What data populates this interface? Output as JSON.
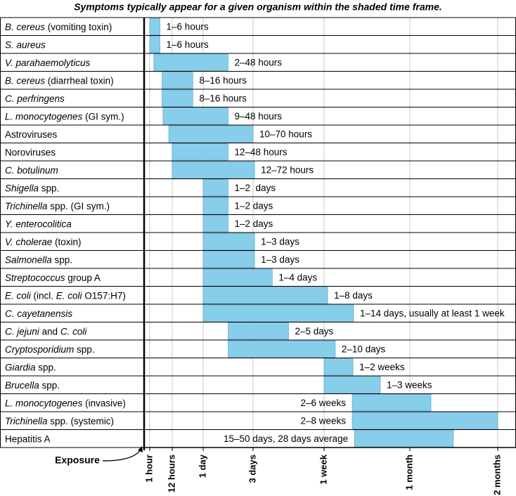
{
  "chart_data": {
    "type": "gantt",
    "title": "Symptoms typically appear for a given organism within the shaded time frame.",
    "annotation": "Exposure",
    "color": "#87ceeb",
    "grid": true,
    "xlim": [
      0,
      1590
    ],
    "xticks": [
      {
        "value": 1,
        "label": "1 hour"
      },
      {
        "value": 12,
        "label": "12 hours"
      },
      {
        "value": 24,
        "label": "1 day"
      },
      {
        "value": 72,
        "label": "3 days"
      },
      {
        "value": 168,
        "label": "1 week"
      },
      {
        "value": 720,
        "label": "1 month"
      },
      {
        "value": 1440,
        "label": "2 months"
      }
    ],
    "rows": [
      {
        "name": [
          {
            "text": "B. cereus",
            "italic": true
          },
          {
            "text": " (vomiting toxin)",
            "italic": false
          }
        ],
        "start": 1,
        "end": 6,
        "label": "1–6 hours"
      },
      {
        "name": [
          {
            "text": "S. aureus",
            "italic": true
          }
        ],
        "start": 1,
        "end": 6,
        "label": "1–6 hours"
      },
      {
        "name": [
          {
            "text": "V. parahaemolyticus",
            "italic": true
          }
        ],
        "start": 3,
        "end": 48,
        "label": "2–48 hours"
      },
      {
        "name": [
          {
            "text": "B. cereus",
            "italic": true
          },
          {
            "text": " (diarrheal toxin)",
            "italic": false
          }
        ],
        "start": 7,
        "end": 20,
        "label": "8–16 hours"
      },
      {
        "name": [
          {
            "text": "C. perfringens",
            "italic": true
          }
        ],
        "start": 7,
        "end": 20,
        "label": "8–16 hours"
      },
      {
        "name": [
          {
            "text": "L. monocytogenes",
            "italic": true
          },
          {
            "text": " (GI sym.)",
            "italic": false
          }
        ],
        "start": 7.5,
        "end": 48,
        "label": "9–48 hours"
      },
      {
        "name": [
          {
            "text": "Astroviruses",
            "italic": false
          }
        ],
        "start": 10.3,
        "end": 72,
        "label": "10–70 hours"
      },
      {
        "name": [
          {
            "text": "Noroviruses",
            "italic": false
          }
        ],
        "start": 12,
        "end": 48,
        "label": "12–48 hours"
      },
      {
        "name": [
          {
            "text": "C. botulinum",
            "italic": true
          }
        ],
        "start": 12,
        "end": 74,
        "label": "12–72 hours"
      },
      {
        "name": [
          {
            "text": "Shigella",
            "italic": true
          },
          {
            "text": " spp.",
            "italic": false
          }
        ],
        "start": 24,
        "end": 48,
        "label": "1–2  days"
      },
      {
        "name": [
          {
            "text": "Trichinella",
            "italic": true
          },
          {
            "text": " spp. (GI sym.)",
            "italic": false
          }
        ],
        "start": 24,
        "end": 48,
        "label": "1–2 days"
      },
      {
        "name": [
          {
            "text": "Y. enterocolitica",
            "italic": true
          }
        ],
        "start": 24,
        "end": 48,
        "label": "1–2 days"
      },
      {
        "name": [
          {
            "text": "V. cholerae",
            "italic": true
          },
          {
            "text": " (toxin)",
            "italic": false
          }
        ],
        "start": 24,
        "end": 74,
        "label": "1–3 days"
      },
      {
        "name": [
          {
            "text": "Salmonella",
            "italic": true
          },
          {
            "text": " spp.",
            "italic": false
          }
        ],
        "start": 24,
        "end": 74,
        "label": "1–3 days"
      },
      {
        "name": [
          {
            "text": "Streptococcus",
            "italic": true
          },
          {
            "text": " group A",
            "italic": false
          }
        ],
        "start": 24,
        "end": 98,
        "label": "1–4 days"
      },
      {
        "name": [
          {
            "text": "E. coli",
            "italic": true
          },
          {
            "text": " (incl. ",
            "italic": false
          },
          {
            "text": "E. coli",
            "italic": true
          },
          {
            "text": " O157:H7)",
            "italic": false
          }
        ],
        "start": 24,
        "end": 191,
        "label": "1–8 days"
      },
      {
        "name": [
          {
            "text": "C. cayetanensis",
            "italic": true
          }
        ],
        "start": 24,
        "end": 358,
        "label": "1–14 days, usually at least 1 week"
      },
      {
        "name": [
          {
            "text": "C. jejuni",
            "italic": true
          },
          {
            "text": " and ",
            "italic": false
          },
          {
            "text": "C. coli",
            "italic": true
          }
        ],
        "start": 48,
        "end": 120,
        "label": "2–5 days"
      },
      {
        "name": [
          {
            "text": "Cryptosporidium",
            "italic": true
          },
          {
            "text": " spp.",
            "italic": false
          }
        ],
        "start": 48,
        "end": 240,
        "label": "2–10 days"
      },
      {
        "name": [
          {
            "text": "Giardia",
            "italic": true
          },
          {
            "text": " spp.",
            "italic": false
          }
        ],
        "start": 168,
        "end": 354,
        "label": "1–2 weeks"
      },
      {
        "name": [
          {
            "text": "Brucella",
            "italic": true
          },
          {
            "text": " spp.",
            "italic": false
          }
        ],
        "start": 168,
        "end": 530,
        "label": "1–3 weeks"
      },
      {
        "name": [
          {
            "text": "L. monocytogenes",
            "italic": true
          },
          {
            "text": " (invasive)",
            "italic": false
          }
        ],
        "start": 349,
        "end": 893,
        "label": "2–6 weeks"
      },
      {
        "name": [
          {
            "text": "Trichinella",
            "italic": true
          },
          {
            "text": " spp. (systemic)",
            "italic": false
          }
        ],
        "start": 349,
        "end": 1440,
        "label": "2–8 weeks"
      },
      {
        "name": [
          {
            "text": "Hepatitis A",
            "italic": false
          }
        ],
        "start": 363,
        "end": 1077,
        "label": "15–50 days, 28 days average"
      }
    ]
  }
}
